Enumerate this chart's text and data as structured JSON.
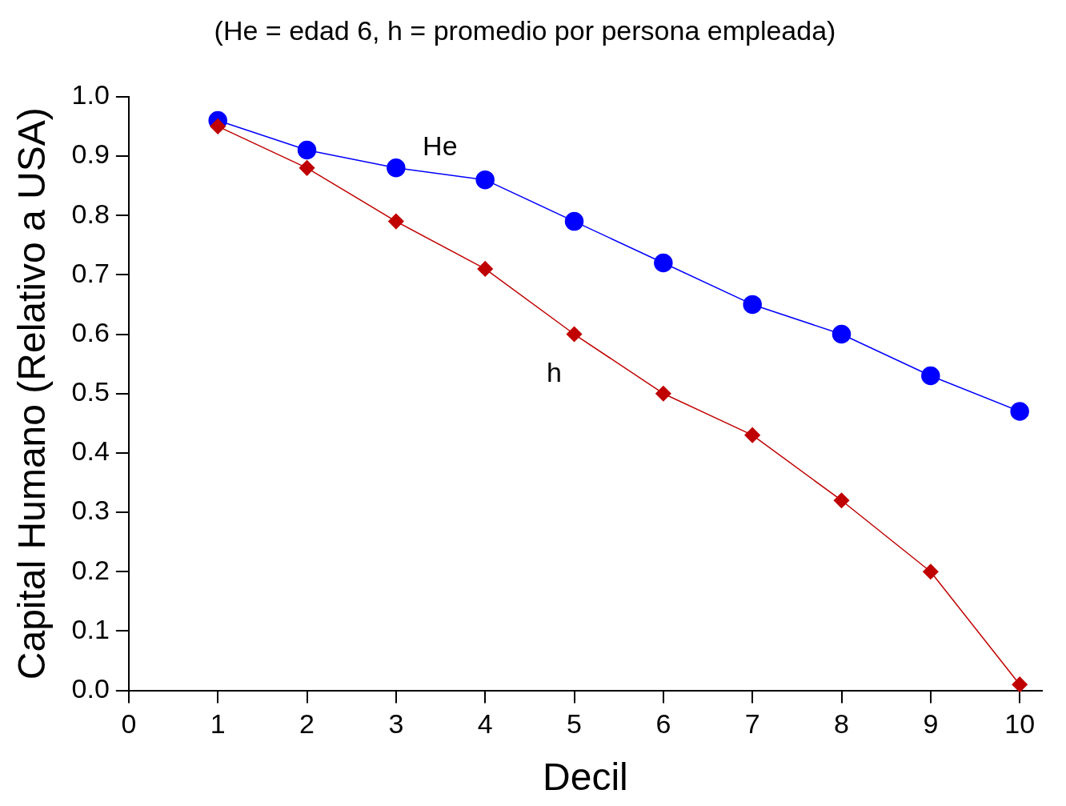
{
  "chart_data": {
    "type": "line",
    "title": "(He = edad 6, h = promedio por persona empleada)",
    "xlabel": "Decil",
    "ylabel": "Capital Humano (Relativo a USA)",
    "x": [
      1,
      2,
      3,
      4,
      5,
      6,
      7,
      8,
      9,
      10
    ],
    "series": [
      {
        "name": "He",
        "color": "#0000ff",
        "marker": "circle",
        "values": [
          0.96,
          0.91,
          0.88,
          0.86,
          0.79,
          0.72,
          0.65,
          0.6,
          0.53,
          0.47
        ]
      },
      {
        "name": "h",
        "color": "#c00000",
        "marker": "diamond",
        "values": [
          0.95,
          0.88,
          0.79,
          0.71,
          0.6,
          0.5,
          0.43,
          0.32,
          0.2,
          0.01
        ]
      }
    ],
    "xlim": [
      0,
      10.25
    ],
    "xticks": [
      0,
      1,
      2,
      3,
      4,
      5,
      6,
      7,
      8,
      9,
      10
    ],
    "ylim": [
      0,
      1
    ],
    "yticks": [
      {
        "value": 0,
        "label": "0.0"
      },
      {
        "value": 0.1,
        "label": "0.1"
      },
      {
        "value": 0.2,
        "label": "0.2"
      },
      {
        "value": 0.3,
        "label": "0.3"
      },
      {
        "value": 0.4,
        "label": "0.4"
      },
      {
        "value": 0.5,
        "label": "0.5"
      },
      {
        "value": 0.6,
        "label": "0.6"
      },
      {
        "value": 0.7,
        "label": "0.7"
      },
      {
        "value": 0.8,
        "label": "0.8"
      },
      {
        "value": 0.9,
        "label": "0.9"
      },
      {
        "value": 1,
        "label": "1.0"
      }
    ],
    "grid": false,
    "legend": false,
    "line_style": "solid"
  }
}
